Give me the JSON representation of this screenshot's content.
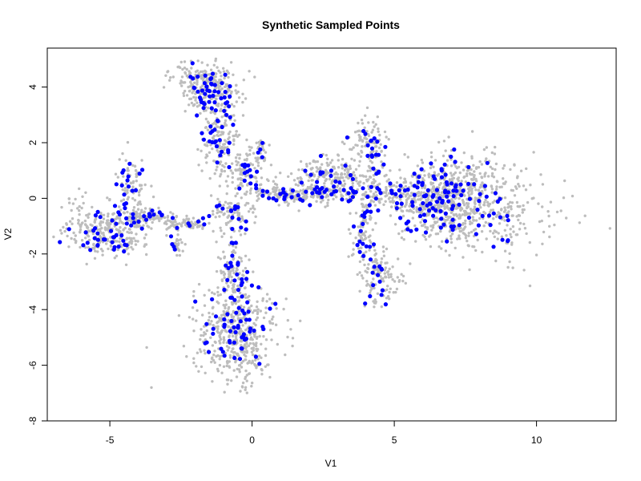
{
  "chart_data": {
    "type": "scatter",
    "title": "Synthetic Sampled Points",
    "xlabel": "V1",
    "ylabel": "V2",
    "xlim": [
      -7.2,
      12.8
    ],
    "ylim": [
      -8.0,
      5.4
    ],
    "x_ticks": [
      -5,
      0,
      5,
      10
    ],
    "y_ticks": [
      -8,
      -6,
      -4,
      -2,
      0,
      2,
      4
    ],
    "grid": false,
    "legend": "none",
    "colors": {
      "background": "#bdbdbd",
      "sampled": "#0000ff"
    },
    "series": [
      {
        "role": "background",
        "color": "#bdbdbd",
        "clusters": [
          {
            "cx": -5.0,
            "cy": -1.2,
            "sx": 0.7,
            "sy": 0.45,
            "n": 240
          },
          {
            "cx": -6.0,
            "cy": -0.6,
            "sx": 0.3,
            "sy": 0.5,
            "n": 40
          },
          {
            "cx": -3.8,
            "cy": -0.7,
            "sx": 0.45,
            "sy": 0.18,
            "n": 90
          },
          {
            "cx": -2.3,
            "cy": -0.9,
            "sx": 0.45,
            "sy": 0.12,
            "n": 70
          },
          {
            "cx": -2.6,
            "cy": -1.6,
            "sx": 0.15,
            "sy": 0.25,
            "n": 25
          },
          {
            "cx": -4.2,
            "cy": 0.5,
            "sx": 0.25,
            "sy": 0.5,
            "n": 70
          },
          {
            "cx": -1.5,
            "cy": 4.0,
            "sx": 0.55,
            "sy": 0.35,
            "n": 180
          },
          {
            "cx": -1.8,
            "cy": 4.5,
            "sx": 0.6,
            "sy": 0.25,
            "n": 60
          },
          {
            "cx": -1.1,
            "cy": 2.2,
            "sx": 0.35,
            "sy": 0.75,
            "n": 160
          },
          {
            "cx": -0.3,
            "cy": 0.9,
            "sx": 0.3,
            "sy": 0.4,
            "n": 80
          },
          {
            "cx": 0.3,
            "cy": 1.6,
            "sx": 0.12,
            "sy": 0.35,
            "n": 30
          },
          {
            "cx": -0.6,
            "cy": -0.5,
            "sx": 0.35,
            "sy": 0.3,
            "n": 80
          },
          {
            "cx": -0.7,
            "cy": -2.5,
            "sx": 0.25,
            "sy": 0.55,
            "n": 100
          },
          {
            "cx": -0.6,
            "cy": -4.7,
            "sx": 0.75,
            "sy": 0.75,
            "n": 360
          },
          {
            "cx": -0.3,
            "cy": -5.8,
            "sx": 0.55,
            "sy": 0.55,
            "n": 90
          },
          {
            "cx": 1.2,
            "cy": 0.15,
            "sx": 0.75,
            "sy": 0.18,
            "n": 140
          },
          {
            "cx": 2.7,
            "cy": 0.6,
            "sx": 0.75,
            "sy": 0.45,
            "n": 230
          },
          {
            "cx": 4.1,
            "cy": 2.0,
            "sx": 0.35,
            "sy": 0.45,
            "n": 100
          },
          {
            "cx": 4.2,
            "cy": 0.8,
            "sx": 0.12,
            "sy": 0.45,
            "n": 30
          },
          {
            "cx": 3.9,
            "cy": -1.2,
            "sx": 0.2,
            "sy": 0.7,
            "n": 80
          },
          {
            "cx": 4.6,
            "cy": -2.8,
            "sx": 0.35,
            "sy": 0.5,
            "n": 110
          },
          {
            "cx": 5.2,
            "cy": 0.1,
            "sx": 0.8,
            "sy": 0.3,
            "n": 140
          },
          {
            "cx": 6.8,
            "cy": 0.0,
            "sx": 0.75,
            "sy": 0.8,
            "n": 520
          },
          {
            "cx": 8.3,
            "cy": -0.2,
            "sx": 0.8,
            "sy": 0.85,
            "n": 200
          },
          {
            "cx": 9.8,
            "cy": -0.8,
            "sx": 1.3,
            "sy": 0.9,
            "n": 50
          }
        ]
      },
      {
        "role": "sampled",
        "color": "#0000ff",
        "clusters": [
          {
            "cx": -5.0,
            "cy": -1.2,
            "sx": 0.6,
            "sy": 0.4,
            "n": 42
          },
          {
            "cx": -3.8,
            "cy": -0.7,
            "sx": 0.45,
            "sy": 0.12,
            "n": 14
          },
          {
            "cx": -2.0,
            "cy": -0.9,
            "sx": 0.45,
            "sy": 0.1,
            "n": 8
          },
          {
            "cx": -2.8,
            "cy": -1.6,
            "sx": 0.1,
            "sy": 0.25,
            "n": 4
          },
          {
            "cx": -4.3,
            "cy": 0.5,
            "sx": 0.25,
            "sy": 0.45,
            "n": 14
          },
          {
            "cx": -1.5,
            "cy": 4.0,
            "sx": 0.45,
            "sy": 0.35,
            "n": 38
          },
          {
            "cx": -1.1,
            "cy": 2.4,
            "sx": 0.3,
            "sy": 0.7,
            "n": 32
          },
          {
            "cx": -0.3,
            "cy": 0.9,
            "sx": 0.3,
            "sy": 0.35,
            "n": 14
          },
          {
            "cx": 0.3,
            "cy": 1.6,
            "sx": 0.1,
            "sy": 0.3,
            "n": 5
          },
          {
            "cx": -0.6,
            "cy": -0.5,
            "sx": 0.3,
            "sy": 0.25,
            "n": 14
          },
          {
            "cx": -0.5,
            "cy": -2.7,
            "sx": 0.25,
            "sy": 0.6,
            "n": 22
          },
          {
            "cx": -0.5,
            "cy": -4.6,
            "sx": 0.6,
            "sy": 0.65,
            "n": 56
          },
          {
            "cx": 1.2,
            "cy": 0.2,
            "sx": 0.7,
            "sy": 0.15,
            "n": 22
          },
          {
            "cx": 2.6,
            "cy": 0.5,
            "sx": 0.65,
            "sy": 0.4,
            "n": 38
          },
          {
            "cx": 4.2,
            "cy": 1.8,
            "sx": 0.3,
            "sy": 0.45,
            "n": 20
          },
          {
            "cx": 3.9,
            "cy": -1.3,
            "sx": 0.2,
            "sy": 0.6,
            "n": 16
          },
          {
            "cx": 4.5,
            "cy": -2.9,
            "sx": 0.3,
            "sy": 0.45,
            "n": 14
          },
          {
            "cx": 5.1,
            "cy": 0.2,
            "sx": 0.75,
            "sy": 0.25,
            "n": 26
          },
          {
            "cx": 6.7,
            "cy": 0.1,
            "sx": 0.7,
            "sy": 0.7,
            "n": 90
          },
          {
            "cx": 8.3,
            "cy": -0.5,
            "sx": 0.6,
            "sy": 0.6,
            "n": 12
          },
          {
            "cx": 9.3,
            "cy": -1.5,
            "sx": 0.3,
            "sy": 0.2,
            "n": 3
          }
        ]
      }
    ]
  }
}
